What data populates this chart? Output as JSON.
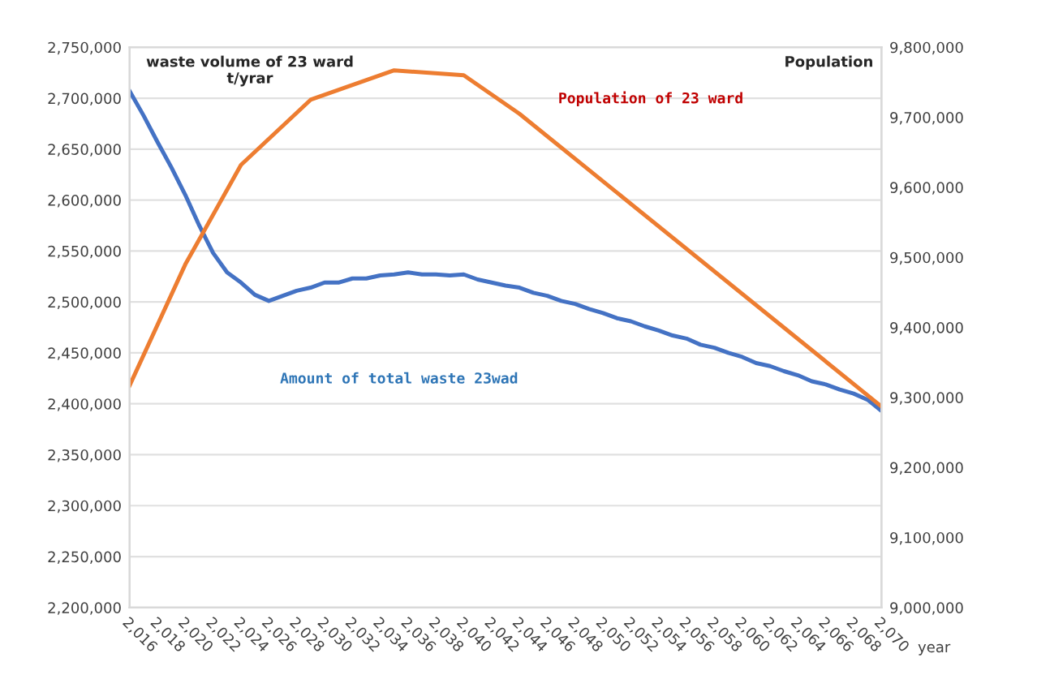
{
  "chart_data": {
    "type": "line",
    "xlabel": "year",
    "ylabel": "waste volume of 23 ward\nt/yrar",
    "y2label": "Population",
    "xlim": [
      2016,
      2070
    ],
    "xticks": [
      {
        "value": 2016,
        "label": "2,016"
      },
      {
        "value": 2018,
        "label": "2,018"
      },
      {
        "value": 2020,
        "label": "2,020"
      },
      {
        "value": 2022,
        "label": "2,022"
      },
      {
        "value": 2024,
        "label": "2,024"
      },
      {
        "value": 2026,
        "label": "2,026"
      },
      {
        "value": 2028,
        "label": "2,028"
      },
      {
        "value": 2030,
        "label": "2,030"
      },
      {
        "value": 2032,
        "label": "2,032"
      },
      {
        "value": 2034,
        "label": "2,034"
      },
      {
        "value": 2036,
        "label": "2,036"
      },
      {
        "value": 2038,
        "label": "2,038"
      },
      {
        "value": 2040,
        "label": "2,040"
      },
      {
        "value": 2042,
        "label": "2,042"
      },
      {
        "value": 2044,
        "label": "2,044"
      },
      {
        "value": 2046,
        "label": "2,046"
      },
      {
        "value": 2048,
        "label": "2,048"
      },
      {
        "value": 2050,
        "label": "2,050"
      },
      {
        "value": 2052,
        "label": "2,052"
      },
      {
        "value": 2054,
        "label": "2,054"
      },
      {
        "value": 2056,
        "label": "2,056"
      },
      {
        "value": 2058,
        "label": "2,058"
      },
      {
        "value": 2060,
        "label": "2,060"
      },
      {
        "value": 2062,
        "label": "2,062"
      },
      {
        "value": 2064,
        "label": "2,064"
      },
      {
        "value": 2066,
        "label": "2,066"
      },
      {
        "value": 2068,
        "label": "2,068"
      },
      {
        "value": 2070,
        "label": "2,070"
      }
    ],
    "ylim": [
      2200000,
      2750000
    ],
    "yticks": [
      {
        "value": 2200000,
        "label": "2,200,000"
      },
      {
        "value": 2250000,
        "label": "2,250,000"
      },
      {
        "value": 2300000,
        "label": "2,300,000"
      },
      {
        "value": 2350000,
        "label": "2,350,000"
      },
      {
        "value": 2400000,
        "label": "2,400,000"
      },
      {
        "value": 2450000,
        "label": "2,450,000"
      },
      {
        "value": 2500000,
        "label": "2,500,000"
      },
      {
        "value": 2550000,
        "label": "2,550,000"
      },
      {
        "value": 2600000,
        "label": "2,600,000"
      },
      {
        "value": 2650000,
        "label": "2,650,000"
      },
      {
        "value": 2700000,
        "label": "2,700,000"
      },
      {
        "value": 2750000,
        "label": "2,750,000"
      }
    ],
    "y2lim": [
      9000000,
      9800000
    ],
    "y2ticks": [
      {
        "value": 9000000,
        "label": "9,000,000"
      },
      {
        "value": 9100000,
        "label": "9,100,000"
      },
      {
        "value": 9200000,
        "label": "9,200,000"
      },
      {
        "value": 9300000,
        "label": "9,300,000"
      },
      {
        "value": 9400000,
        "label": "9,400,000"
      },
      {
        "value": 9500000,
        "label": "9,500,000"
      },
      {
        "value": 9600000,
        "label": "9,600,000"
      },
      {
        "value": 9700000,
        "label": "9,700,000"
      },
      {
        "value": 9800000,
        "label": "9,800,000"
      }
    ],
    "grid": "y",
    "legend": false,
    "marker": "none",
    "line_style": "solid",
    "series": [
      {
        "name": "Amount of total waste 23wad",
        "color": "#4472c4",
        "x": [
          2016,
          2017,
          2018,
          2019,
          2020,
          2021,
          2022,
          2023,
          2024,
          2025,
          2026,
          2027,
          2028,
          2029,
          2030,
          2031,
          2032,
          2033,
          2034,
          2035,
          2036,
          2037,
          2038,
          2039,
          2040,
          2041,
          2042,
          2043,
          2044,
          2045,
          2046,
          2047,
          2048,
          2049,
          2050,
          2051,
          2052,
          2053,
          2054,
          2055,
          2056,
          2057,
          2058,
          2059,
          2060,
          2061,
          2062,
          2063,
          2064,
          2065,
          2066,
          2067,
          2068,
          2069,
          2070
        ],
        "values": [
          2707000,
          2683000,
          2657000,
          2632000,
          2605000,
          2575000,
          2548000,
          2529000,
          2519000,
          2507000,
          2501000,
          2506000,
          2511000,
          2514000,
          2519000,
          2519000,
          2523000,
          2523000,
          2526000,
          2527000,
          2529000,
          2527000,
          2527000,
          2526000,
          2527000,
          2522000,
          2519000,
          2516000,
          2514000,
          2509000,
          2506000,
          2501000,
          2498000,
          2493000,
          2489000,
          2484000,
          2481000,
          2476000,
          2472000,
          2467000,
          2464000,
          2458000,
          2455000,
          2450000,
          2446000,
          2440000,
          2437000,
          2432000,
          2428000,
          2422000,
          2419000,
          2414000,
          2410000,
          2404000,
          2393000
        ]
      },
      {
        "name": "Population of 23 ward",
        "color": "#ed7d31",
        "axis": "y2",
        "x": [
          2016,
          2020,
          2024,
          2029,
          2035,
          2040,
          2044,
          2070
        ],
        "values": [
          9317000,
          9490000,
          9632000,
          9725000,
          9767000,
          9760000,
          9705000,
          9287000
        ]
      }
    ]
  }
}
